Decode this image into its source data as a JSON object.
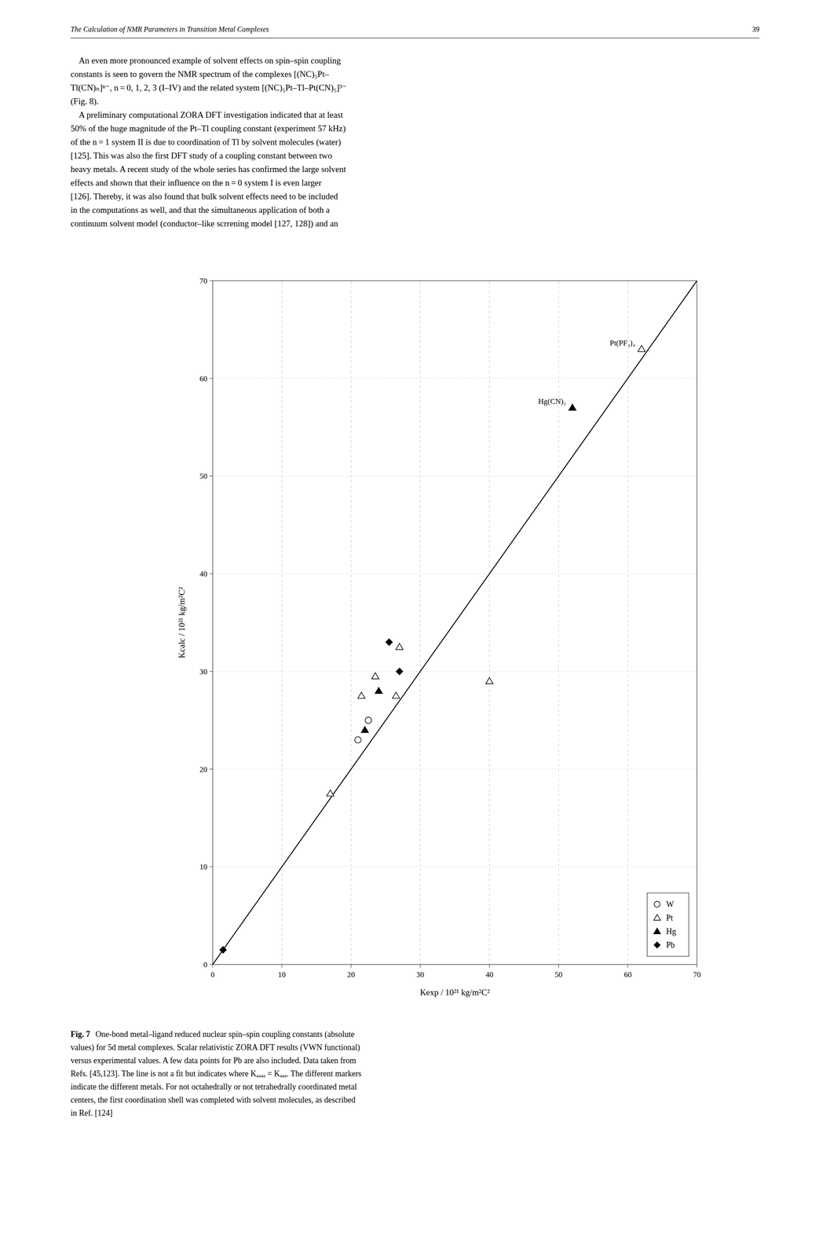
{
  "header_left": "The Calculation of NMR Parameters in Transition Metal Complexes",
  "header_right": "39",
  "body_text": [
    "    An even more pronounced example of solvent effects on spin–spin coupling",
    "constants is seen to govern the NMR spectrum of the complexes [(NC)₅Pt–",
    "Tl(CN)ₙ]ⁿ⁻, n = 0, 1, 2, 3 (I–IV) and the related system [(NC)₅Pt–Tl–Pt(CN)₅]³⁻",
    "(Fig. 8).",
    "    A preliminary computational ZORA DFT investigation indicated that at least",
    "50% of the huge magnitude of the Pt–Tl coupling constant (experiment 57 kHz)",
    "of the n = 1 system II is due to coordination of Tl by solvent molecules (water)",
    "[125]. This was also the first DFT study of a coupling constant between two",
    "heavy metals. A recent study of the whole series has confirmed the large solvent",
    "effects and shown that their influence on the n = 0 system I is even larger",
    "[126]. Thereby, it was also found that bulk solvent effects need to be included",
    "in the computations as well, and that the simultaneous application of both a",
    "continuum solvent model (conductor–like scrrening model [127, 128]) and an"
  ],
  "caption_label": "Fig. 7",
  "caption_lines": [
    "One-bond metal–ligand reduced nuclear spin–spin coupling constants (absolute",
    "values) for 5d metal complexes. Scalar relativistic ZORA DFT results (VWN functional)",
    "versus experimental values. A few data points for Pb are also included. Data taken from",
    "Refs. [45,123]. The line is not a fit but indicates where Kₐₐₐₐ = Kₐₐₐ. The different markers",
    "indicate the different metals. For not octahedrally or not tetrahedrally coordinated metal",
    "centers, the first coordination shell was completed with solvent molecules, as described",
    "in Ref. [124]"
  ],
  "chart_data": {
    "type": "scatter",
    "x_label": "Kexp / 10²¹ kg/m²C²",
    "y_label": "Kcalc / 10²¹ kg/m²C²",
    "xlim": [
      0,
      70
    ],
    "ylim": [
      0,
      70
    ],
    "xticks": [
      0,
      10,
      20,
      30,
      40,
      50,
      60,
      70
    ],
    "yticks": [
      0,
      10,
      20,
      30,
      40,
      50,
      60,
      70
    ],
    "grid": true,
    "legend": "lower right",
    "identity_line": {
      "x": [
        0,
        70
      ],
      "values": [
        0,
        70
      ]
    },
    "series": [
      {
        "name": "W",
        "marker": "circle",
        "color": "white",
        "x": [
          21.0,
          22.5
        ],
        "values": [
          23.0,
          25.0
        ]
      },
      {
        "name": "Pt",
        "marker": "triangle",
        "color": "white",
        "x": [
          17.0,
          21.5,
          23.5,
          26.5,
          27.0,
          40.0,
          62.0
        ],
        "values": [
          17.5,
          27.5,
          29.5,
          27.5,
          32.5,
          29.0,
          63.0
        ]
      },
      {
        "name": "Hg",
        "marker": "triangle",
        "color": "black",
        "x": [
          22.0,
          24.0,
          52.0
        ],
        "values": [
          24.0,
          28.0,
          57.0
        ]
      },
      {
        "name": "Pb",
        "marker": "diamond",
        "color": "black",
        "x": [
          1.5,
          25.5,
          27.0
        ],
        "values": [
          1.5,
          33.0,
          30.0
        ]
      }
    ],
    "annotations": [
      {
        "text": "Pt(PF₃)₄",
        "x": 62.0,
        "y": 63.0
      },
      {
        "text": "Hg(CN)₂",
        "x": 52.0,
        "y": 57.0
      }
    ]
  }
}
